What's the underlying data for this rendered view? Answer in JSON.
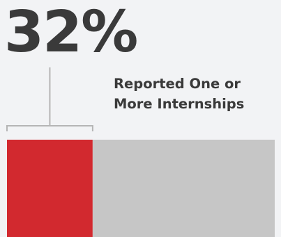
{
  "chart_data": {
    "type": "bar",
    "orientation": "horizontal",
    "stacked": true,
    "value_label": "32%",
    "label_lines": [
      "Reported One or",
      "More Internships"
    ],
    "series": [
      {
        "value": 32,
        "color": "#d2292f"
      },
      {
        "value": 68,
        "color": "#c6c6c6"
      }
    ],
    "xlim": [
      0,
      100
    ],
    "bracket_color": "#b5b5b5"
  }
}
